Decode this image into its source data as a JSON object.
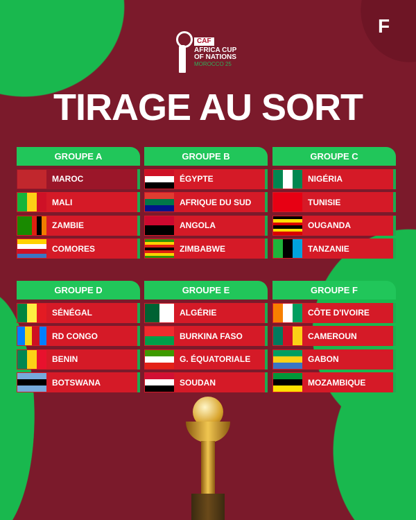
{
  "brand": "F",
  "logo": {
    "caf": "CAF",
    "line1": "AFRICA CUP",
    "line2": "OF NATIONS",
    "line3": "MOROCCO 25"
  },
  "title": "TIRAGE AU SORT",
  "colors": {
    "background": "#7b1a2b",
    "accent_green": "#21c65a",
    "row_red": "#d51a27",
    "host_row": "#9b1629"
  },
  "groups": [
    {
      "name": "GROUPE A",
      "teams": [
        {
          "name": "MAROC",
          "host": true,
          "flag": {
            "dir": "v",
            "colors": [
              "#c1272d"
            ]
          }
        },
        {
          "name": "MALI",
          "flag": {
            "dir": "v",
            "colors": [
              "#14b53a",
              "#fcd116",
              "#ce1126"
            ]
          }
        },
        {
          "name": "ZAMBIE",
          "flag": {
            "dir": "v",
            "colors": [
              "#198a00",
              "#198a00",
              "#198a00",
              "#de2010",
              "#000000",
              "#ef7d00"
            ]
          }
        },
        {
          "name": "COMORES",
          "flag": {
            "dir": "h",
            "colors": [
              "#ffd100",
              "#ffffff",
              "#ce1126",
              "#3a75c4"
            ]
          }
        }
      ]
    },
    {
      "name": "GROUPE B",
      "teams": [
        {
          "name": "ÉGYPTE",
          "flag": {
            "dir": "h",
            "colors": [
              "#ce1126",
              "#ffffff",
              "#000000"
            ]
          }
        },
        {
          "name": "AFRIQUE DU SUD",
          "flag": {
            "dir": "h",
            "colors": [
              "#e03c31",
              "#007749",
              "#001489"
            ]
          }
        },
        {
          "name": "ANGOLA",
          "flag": {
            "dir": "h",
            "colors": [
              "#cc092f",
              "#000000"
            ]
          }
        },
        {
          "name": "ZIMBABWE",
          "flag": {
            "dir": "h",
            "colors": [
              "#319208",
              "#ffd200",
              "#de2010",
              "#000000",
              "#de2010",
              "#ffd200",
              "#319208"
            ]
          }
        }
      ]
    },
    {
      "name": "GROUPE C",
      "teams": [
        {
          "name": "NIGÉRIA",
          "flag": {
            "dir": "v",
            "colors": [
              "#008751",
              "#ffffff",
              "#008751"
            ]
          }
        },
        {
          "name": "TUNISIE",
          "flag": {
            "dir": "v",
            "colors": [
              "#e70013"
            ]
          }
        },
        {
          "name": "OUGANDA",
          "flag": {
            "dir": "h",
            "colors": [
              "#000000",
              "#fcdc04",
              "#d90000",
              "#000000",
              "#fcdc04",
              "#d90000"
            ]
          }
        },
        {
          "name": "TANZANIE",
          "flag": {
            "dir": "v",
            "colors": [
              "#1eb53a",
              "#000000",
              "#00a3dd"
            ]
          }
        }
      ]
    },
    {
      "name": "GROUPE D",
      "teams": [
        {
          "name": "SÉNÉGAL",
          "flag": {
            "dir": "v",
            "colors": [
              "#00853f",
              "#fdef42",
              "#e31b23"
            ]
          }
        },
        {
          "name": "RD CONGO",
          "flag": {
            "dir": "v",
            "colors": [
              "#007fff",
              "#f7d618",
              "#ce1021",
              "#007fff"
            ]
          }
        },
        {
          "name": "BENIN",
          "flag": {
            "dir": "v",
            "colors": [
              "#008751",
              "#fcd116",
              "#e8112d"
            ]
          }
        },
        {
          "name": "BOTSWANA",
          "flag": {
            "dir": "h",
            "colors": [
              "#75aadb",
              "#000000",
              "#75aadb"
            ]
          }
        }
      ]
    },
    {
      "name": "GROUPE E",
      "teams": [
        {
          "name": "ALGÉRIE",
          "flag": {
            "dir": "v",
            "colors": [
              "#006233",
              "#ffffff"
            ]
          }
        },
        {
          "name": "BURKINA FASO",
          "flag": {
            "dir": "h",
            "colors": [
              "#ef2b2d",
              "#009e49"
            ]
          }
        },
        {
          "name": "G. ÉQUATORIALE",
          "flag": {
            "dir": "h",
            "colors": [
              "#3e9a00",
              "#ffffff",
              "#e32118"
            ]
          }
        },
        {
          "name": "SOUDAN",
          "flag": {
            "dir": "h",
            "colors": [
              "#d21034",
              "#ffffff",
              "#000000"
            ]
          }
        }
      ]
    },
    {
      "name": "GROUPE F",
      "teams": [
        {
          "name": "CÔTE D'IVOIRE",
          "flag": {
            "dir": "v",
            "colors": [
              "#f77f00",
              "#ffffff",
              "#009e60"
            ]
          }
        },
        {
          "name": "CAMEROUN",
          "flag": {
            "dir": "v",
            "colors": [
              "#007a5e",
              "#ce1126",
              "#fcd116"
            ]
          }
        },
        {
          "name": "GABON",
          "flag": {
            "dir": "h",
            "colors": [
              "#009e60",
              "#fcd116",
              "#3a75c4"
            ]
          }
        },
        {
          "name": "MOZAMBIQUE",
          "flag": {
            "dir": "h",
            "colors": [
              "#009739",
              "#000000",
              "#fce100"
            ]
          }
        }
      ]
    }
  ]
}
